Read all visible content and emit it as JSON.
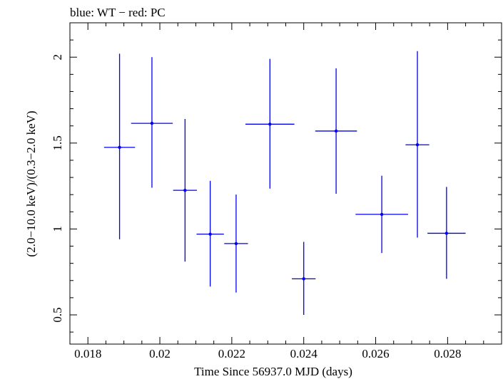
{
  "title": "blue: WT − red: PC",
  "chart_data": {
    "type": "scatter",
    "title": "blue: WT − red: PC",
    "xlabel": "Time Since 56937.0 MJD (days)",
    "ylabel": "(2.0−10.0 keV)/(0.3−2.0 keV)",
    "xlim": [
      0.0175,
      0.0295
    ],
    "ylim": [
      0.33,
      2.2
    ],
    "xticks": [
      0.018,
      0.02,
      0.022,
      0.024,
      0.026,
      0.028
    ],
    "xtick_labels": [
      "0.018",
      "0.02",
      "0.022",
      "0.024",
      "0.026",
      "0.028"
    ],
    "yticks": [
      0.5,
      1,
      1.5,
      2
    ],
    "ytick_labels": [
      "0.5",
      "1",
      "1.5",
      "2"
    ],
    "grid": false,
    "series": [
      {
        "name": "WT",
        "color": "#0000ee",
        "points": [
          {
            "x": 0.01888,
            "y": 1.475,
            "xerr": [
              0.00043,
              0.00043
            ],
            "yerr": [
              0.535,
              0.545
            ]
          },
          {
            "x": 0.01978,
            "y": 1.615,
            "xerr": [
              0.00058,
              0.00058
            ],
            "yerr": [
              0.375,
              0.385
            ]
          },
          {
            "x": 0.0207,
            "y": 1.225,
            "xerr": [
              0.00033,
              0.00033
            ],
            "yerr": [
              0.415,
              0.415
            ]
          },
          {
            "x": 0.0214,
            "y": 0.97,
            "xerr": [
              0.00038,
              0.00038
            ],
            "yerr": [
              0.305,
              0.31
            ]
          },
          {
            "x": 0.02212,
            "y": 0.915,
            "xerr": [
              0.00033,
              0.00033
            ],
            "yerr": [
              0.285,
              0.285
            ]
          },
          {
            "x": 0.02306,
            "y": 1.61,
            "xerr": [
              0.00068,
              0.00068
            ],
            "yerr": [
              0.375,
              0.38
            ]
          },
          {
            "x": 0.024,
            "y": 0.71,
            "xerr": [
              0.00033,
              0.00033
            ],
            "yerr": [
              0.21,
              0.215
            ]
          },
          {
            "x": 0.0249,
            "y": 1.57,
            "xerr": [
              0.00058,
              0.00058
            ],
            "yerr": [
              0.365,
              0.365
            ]
          },
          {
            "x": 0.02617,
            "y": 1.085,
            "xerr": [
              0.00073,
              0.00073
            ],
            "yerr": [
              0.225,
              0.225
            ]
          },
          {
            "x": 0.02716,
            "y": 1.49,
            "xerr": [
              0.00033,
              0.00033
            ],
            "yerr": [
              0.54,
              0.545
            ]
          },
          {
            "x": 0.02797,
            "y": 0.975,
            "xerr": [
              0.00053,
              0.00053
            ],
            "yerr": [
              0.265,
              0.27
            ]
          }
        ]
      }
    ]
  }
}
